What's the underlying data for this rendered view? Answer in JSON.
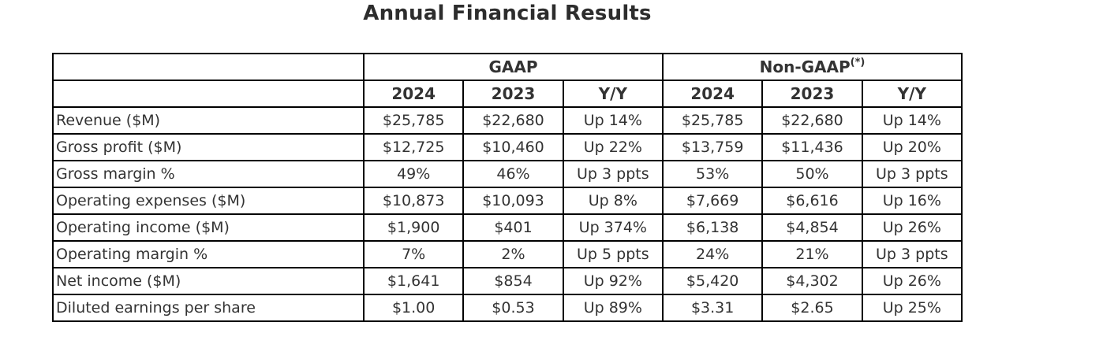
{
  "title": "Annual Financial Results",
  "table": {
    "groups": [
      {
        "label": "GAAP",
        "sup": ""
      },
      {
        "label": "Non-GAAP",
        "sup": "(*)"
      }
    ],
    "year_cols": [
      "2024",
      "2023",
      "Y/Y"
    ],
    "rows": [
      {
        "label": "Revenue ($M)",
        "values": [
          "$25,785",
          "$22,680",
          "Up 14%",
          "$25,785",
          "$22,680",
          "Up 14%"
        ]
      },
      {
        "label": "Gross profit ($M)",
        "values": [
          "$12,725",
          "$10,460",
          "Up 22%",
          "$13,759",
          "$11,436",
          "Up 20%"
        ]
      },
      {
        "label": "Gross margin %",
        "values": [
          "49%",
          "46%",
          "Up 3 ppts",
          "53%",
          "50%",
          "Up 3 ppts"
        ]
      },
      {
        "label": "Operating expenses ($M)",
        "values": [
          "$10,873",
          "$10,093",
          "Up 8%",
          "$7,669",
          "$6,616",
          "Up 16%"
        ]
      },
      {
        "label": "Operating income ($M)",
        "values": [
          "$1,900",
          "$401",
          "Up 374%",
          "$6,138",
          "$4,854",
          "Up 26%"
        ]
      },
      {
        "label": "Operating margin %",
        "values": [
          "7%",
          "2%",
          "Up 5 ppts",
          "24%",
          "21%",
          "Up 3 ppts"
        ]
      },
      {
        "label": "Net income ($M)",
        "values": [
          "$1,641",
          "$854",
          "Up 92%",
          "$5,420",
          "$4,302",
          "Up 26%"
        ]
      },
      {
        "label": "Diluted earnings per share",
        "values": [
          "$1.00",
          "$0.53",
          "Up 89%",
          "$3.31",
          "$2.65",
          "Up 25%"
        ]
      }
    ]
  },
  "colors": {
    "text": "#333333",
    "title_text": "#2d2d2d",
    "border": "#000000",
    "background": "#ffffff"
  }
}
